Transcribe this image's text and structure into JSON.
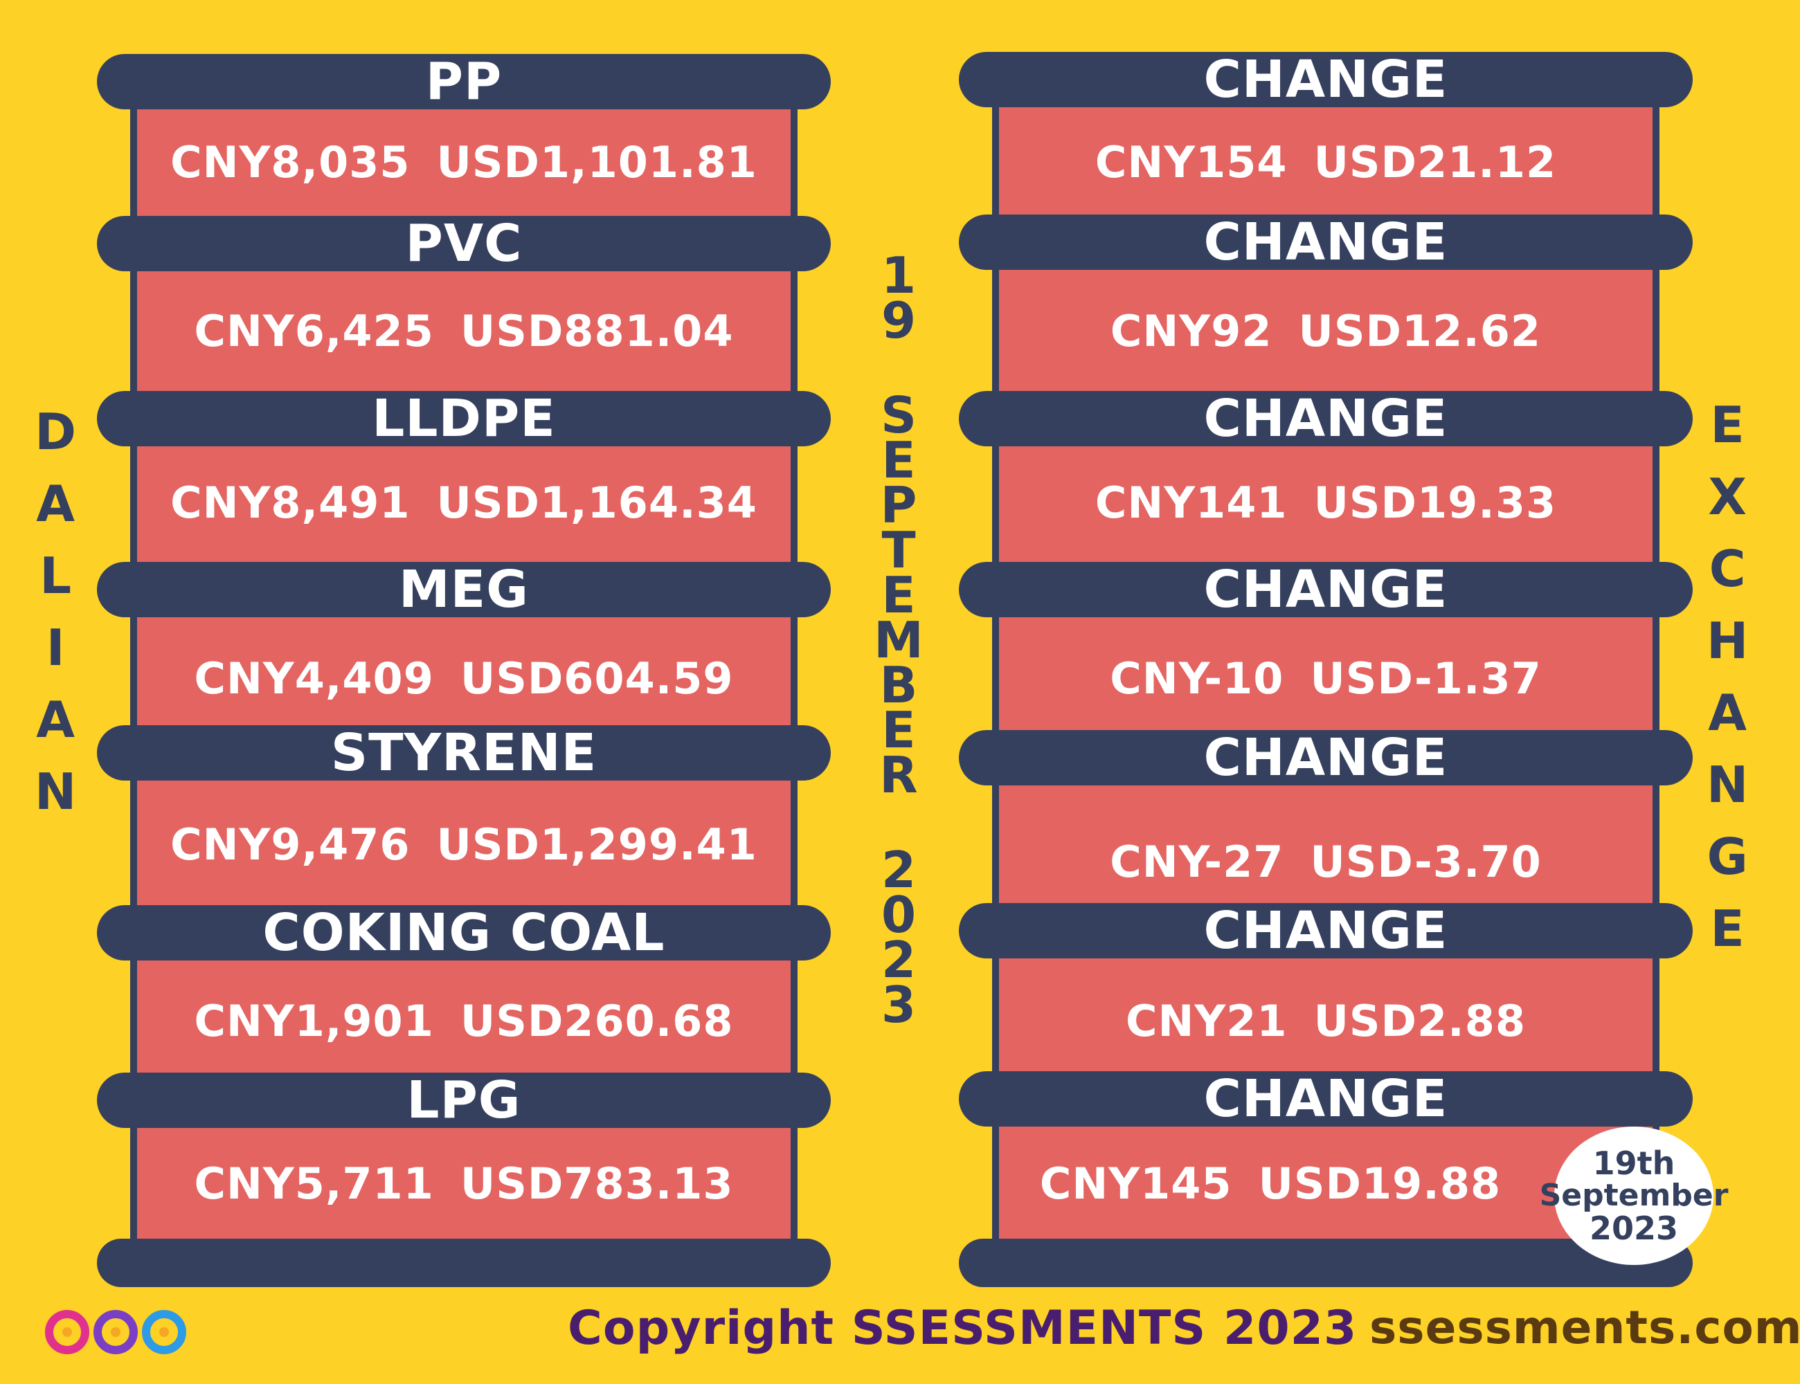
{
  "left_title_letters": [
    "D",
    "A",
    "L",
    "I",
    "A",
    "N"
  ],
  "right_title_letters": [
    "E",
    "X",
    "C",
    "H",
    "A",
    "N",
    "G",
    "E"
  ],
  "date_day_letters": [
    "1",
    "9"
  ],
  "date_month_letters": [
    "S",
    "E",
    "P",
    "T",
    "E",
    "M",
    "B",
    "E",
    "R"
  ],
  "date_year_letters": [
    "2",
    "0",
    "2",
    "3"
  ],
  "commodities": [
    {
      "name": "PP",
      "cny": "CNY8,035",
      "usd": "USD1,101.81"
    },
    {
      "name": "PVC",
      "cny": "CNY6,425",
      "usd": "USD881.04"
    },
    {
      "name": "LLDPE",
      "cny": "CNY8,491",
      "usd": "USD1,164.34"
    },
    {
      "name": "MEG",
      "cny": "CNY4,409",
      "usd": "USD604.59"
    },
    {
      "name": "STYRENE",
      "cny": "CNY9,476",
      "usd": "USD1,299.41"
    },
    {
      "name": "COKING COAL",
      "cny": "CNY1,901",
      "usd": "USD260.68"
    },
    {
      "name": "LPG",
      "cny": "CNY5,711",
      "usd": "USD783.13"
    }
  ],
  "changes": [
    {
      "label": "CHANGE",
      "cny": "CNY154",
      "usd": "USD21.12"
    },
    {
      "label": "CHANGE",
      "cny": "CNY92",
      "usd": "USD12.62"
    },
    {
      "label": "CHANGE",
      "cny": "CNY141",
      "usd": "USD19.33"
    },
    {
      "label": "CHANGE",
      "cny": "CNY-10",
      "usd": "USD-1.37"
    },
    {
      "label": "CHANGE",
      "cny": "CNY-27",
      "usd": "USD-3.70"
    },
    {
      "label": "CHANGE",
      "cny": "CNY21",
      "usd": "USD2.88"
    },
    {
      "label": "CHANGE",
      "cny": "CNY145",
      "usd": "USD19.88"
    }
  ],
  "date_stamp": {
    "line1": "19th",
    "line2": "September",
    "line3": "2023"
  },
  "footer": {
    "copyright": "Copyright SSESSMENTS 2023",
    "website": "ssessments.com"
  },
  "colors": {
    "background": "#FDD126",
    "navy": "#35405E",
    "panel": "#E36461",
    "copyright": "#4A1E6F",
    "website": "#5A3A10"
  },
  "logo_icon": "infinity-loop-logo-icon"
}
